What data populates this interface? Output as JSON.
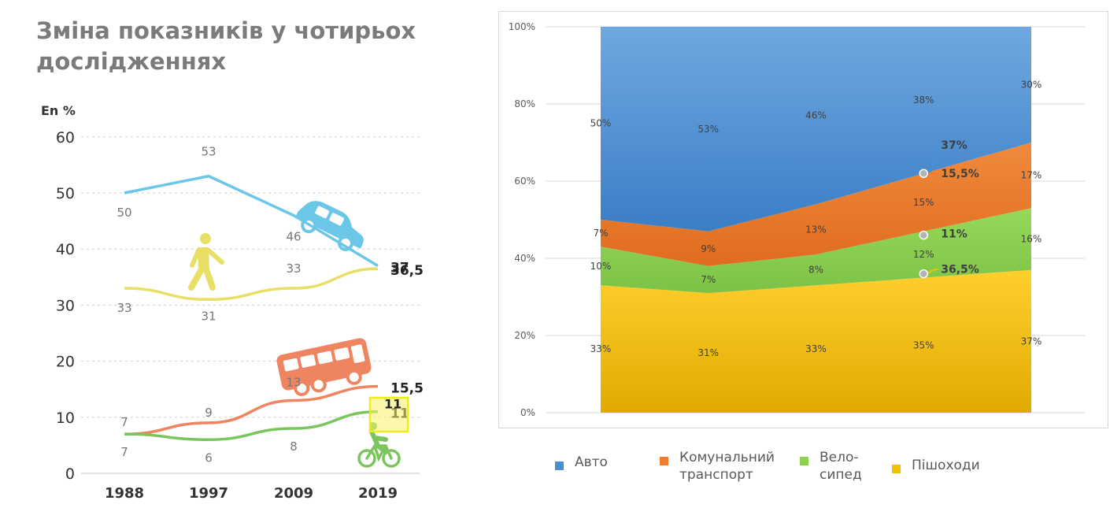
{
  "title": "Зміна показників у чотирьох дослідженнях",
  "chart_data": [
    {
      "type": "line",
      "ylabel": "En %",
      "ylim": [
        0,
        60
      ],
      "yticks": [
        0,
        10,
        20,
        30,
        40,
        50,
        60
      ],
      "x": [
        "1988",
        "1997",
        "2009",
        "2019"
      ],
      "grid": true,
      "series": [
        {
          "key": "car",
          "color": "#6cc6e8",
          "values": [
            50,
            53,
            46,
            37
          ],
          "point_labels": [
            "50",
            "53",
            "46",
            "37"
          ]
        },
        {
          "key": "walk",
          "color": "#e8df66",
          "values": [
            33,
            31,
            33,
            36.5
          ],
          "point_labels": [
            "33",
            "31",
            "33",
            "36,5"
          ]
        },
        {
          "key": "bus",
          "color": "#ef8460",
          "values": [
            7,
            9,
            13,
            15.5
          ],
          "point_labels": [
            "7",
            "9",
            "13",
            "15,5"
          ]
        },
        {
          "key": "bike",
          "color": "#7ac55d",
          "values": [
            7,
            6,
            8,
            11
          ],
          "point_labels": [
            "7",
            "6",
            "8",
            "11"
          ]
        }
      ]
    },
    {
      "type": "area",
      "stacked": true,
      "percent": true,
      "ylim": [
        0,
        100
      ],
      "yticks": [
        "0%",
        "20%",
        "40%",
        "60%",
        "80%",
        "100%"
      ],
      "x_count": 5,
      "legend_position": "bottom",
      "series": [
        {
          "name": "Пішоходи",
          "color": "#f5c000",
          "values": [
            33,
            31,
            33,
            35,
            37
          ],
          "labels": [
            "33%",
            "31%",
            "33%",
            "35%",
            "37%"
          ]
        },
        {
          "name": "Вело-сипед",
          "color": "#8cd24e",
          "values": [
            10,
            7,
            8,
            12,
            16
          ],
          "labels": [
            "10%",
            "7%",
            "8%",
            "12%",
            "16%"
          ]
        },
        {
          "name": "Комунальний транспорт",
          "color": "#ed7d31",
          "values": [
            7,
            9,
            13,
            15,
            17
          ],
          "labels": [
            "7%",
            "9%",
            "13%",
            "15%",
            "17%"
          ]
        },
        {
          "name": "Авто",
          "color": "#4a8fd4",
          "values": [
            50,
            53,
            46,
            38,
            30
          ],
          "labels": [
            "50%",
            "53%",
            "46%",
            "38%",
            "30%"
          ]
        }
      ],
      "annotations": [
        "37%",
        "15,5%",
        "11%",
        "36,5%"
      ]
    }
  ],
  "legend": [
    {
      "lines": [
        "Авто"
      ],
      "color": "#4a8fd4"
    },
    {
      "lines": [
        "Комунальний",
        "транспорт"
      ],
      "color": "#ed7d31"
    },
    {
      "lines": [
        "Вело-",
        "сипед"
      ],
      "color": "#8cd24e"
    },
    {
      "lines": [
        "Пішоходи"
      ],
      "color": "#f5c000"
    }
  ]
}
